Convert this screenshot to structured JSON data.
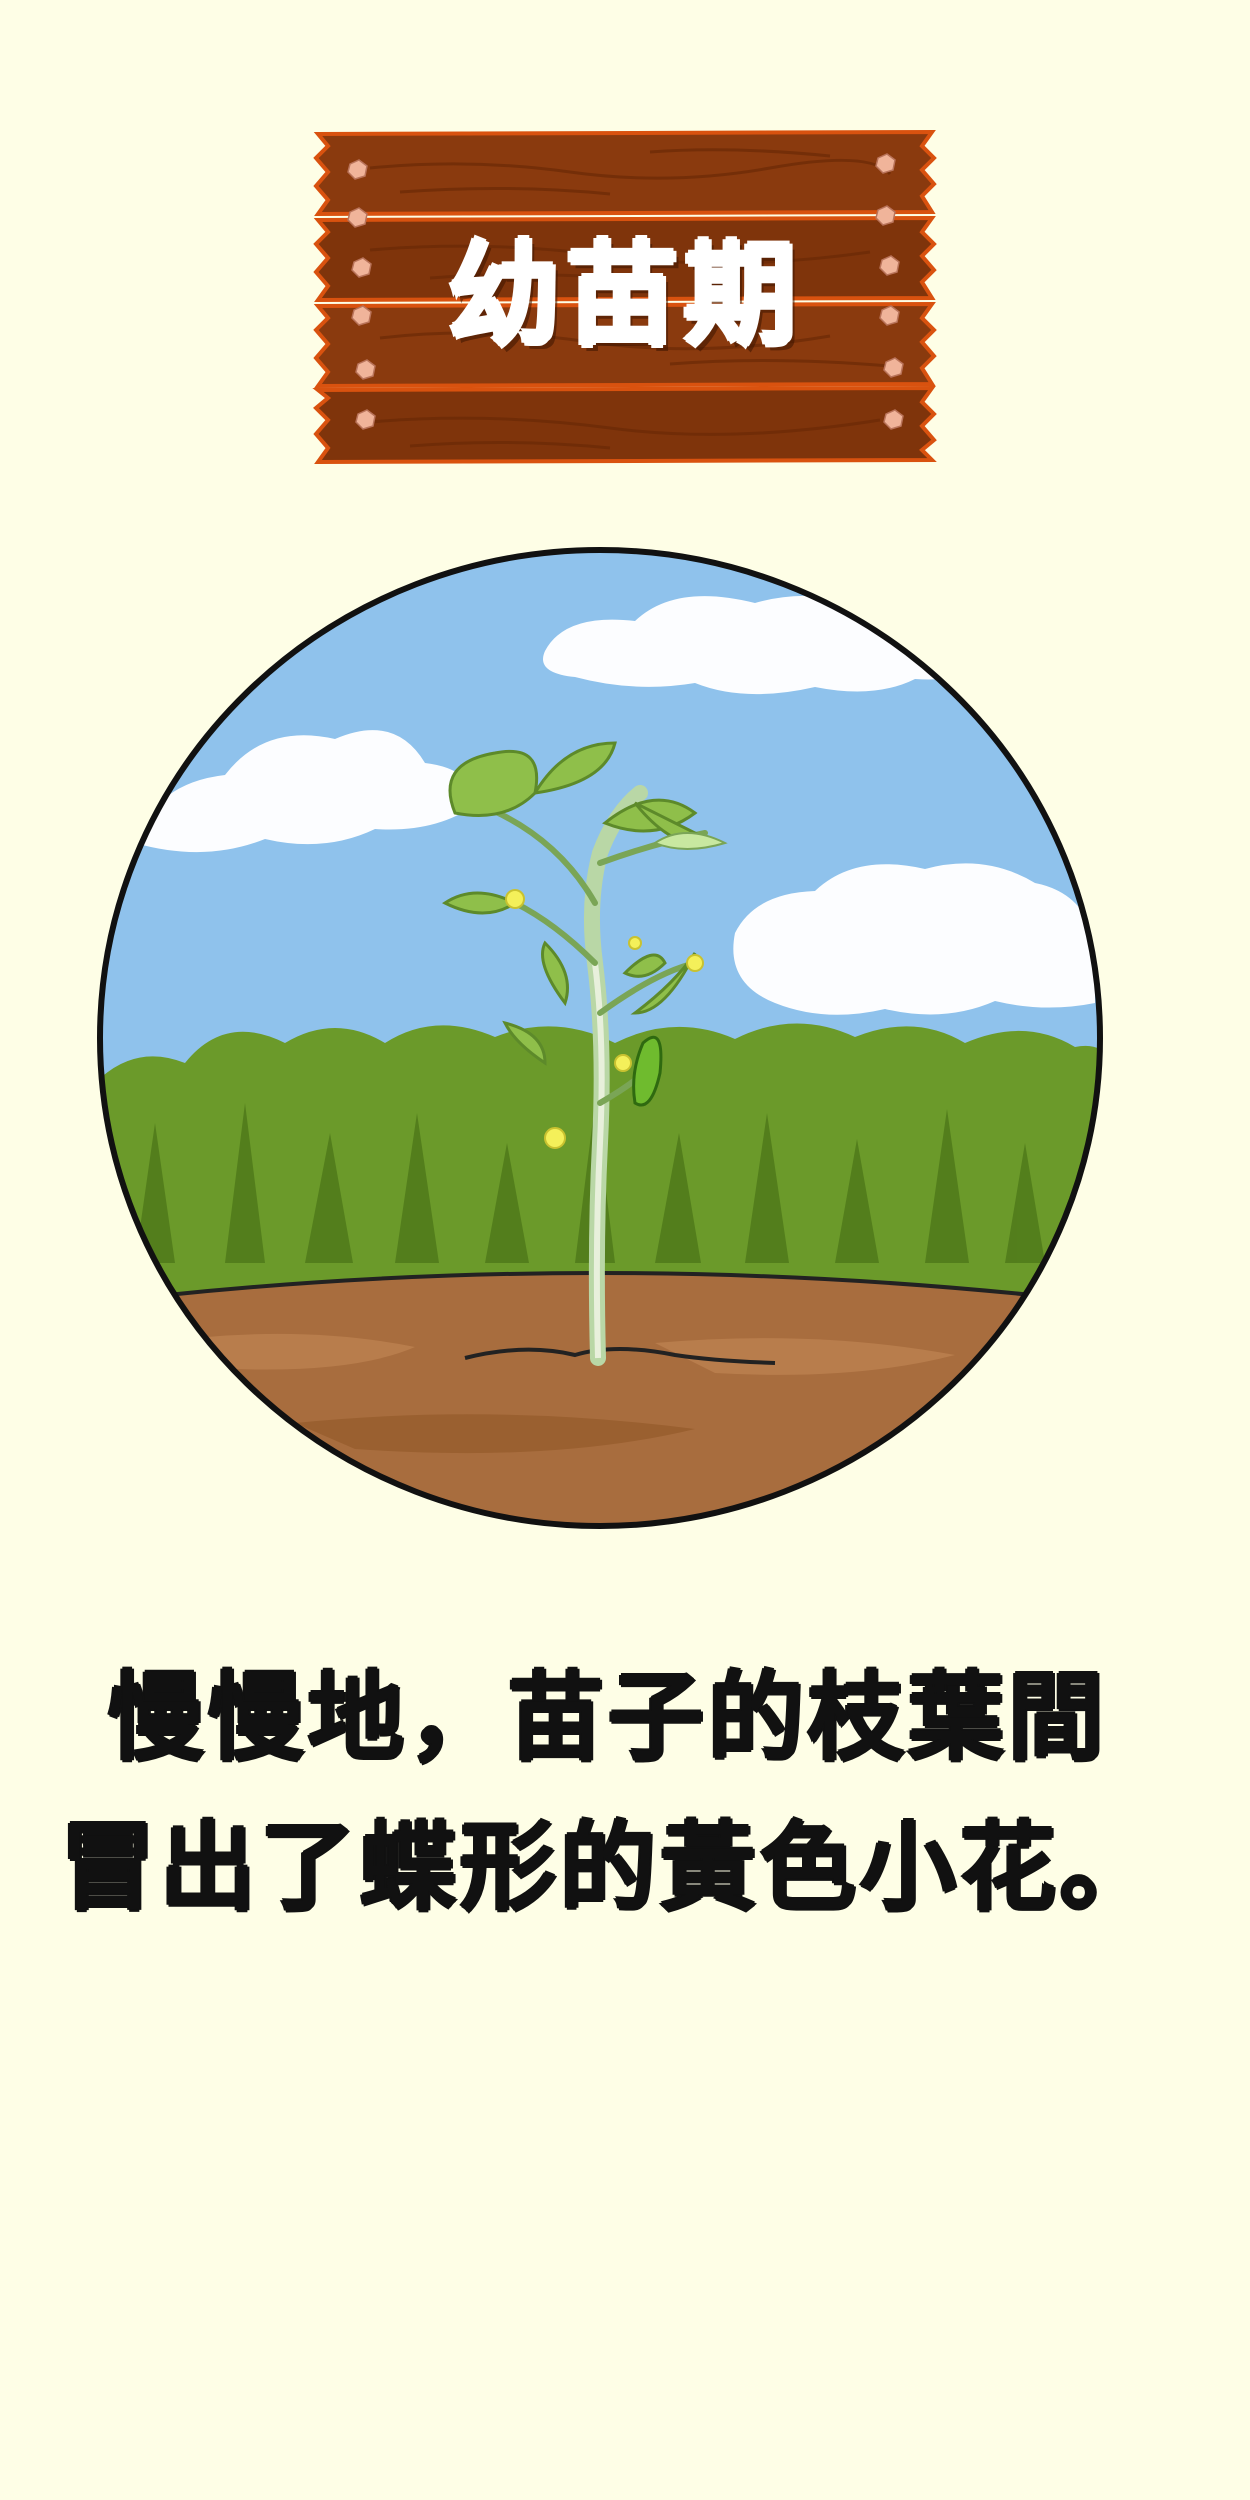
{
  "sign": {
    "title": "幼苗期",
    "icon": "wooden-sign-icon",
    "colors": {
      "wood": "#8a3a0e",
      "wood_dark": "#6b2a06",
      "wood_edge": "#d9520f",
      "nail": "#f0b49a"
    }
  },
  "scene": {
    "icon": "soybean-seedling-illustration",
    "colors": {
      "sky": "#8fc2ec",
      "cloud": "#ffffff",
      "bushes": "#6b9a2a",
      "bushes_dark": "#4f7a1a",
      "soil": "#a86d3e",
      "soil_light": "#b87d4c",
      "outline": "#111111"
    }
  },
  "caption": {
    "line1": "慢慢地，苗子的枝葉間",
    "line2": "冒出了蝶形的黃色小花。"
  },
  "page": {
    "background": "#fefee6"
  }
}
